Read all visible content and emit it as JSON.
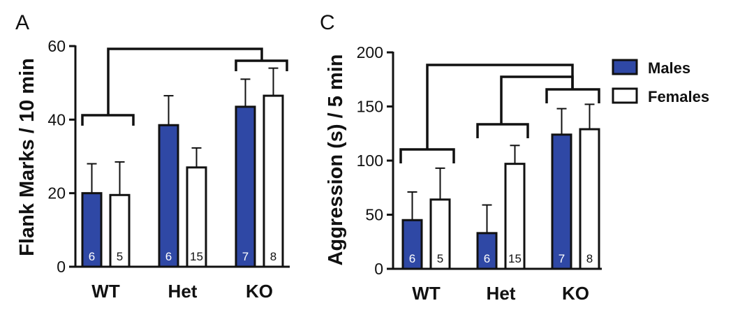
{
  "colors": {
    "male": "#2f48a5",
    "female": "#ffffff",
    "ink": "#111111"
  },
  "legend": {
    "males_label": "Males",
    "females_label": "Females"
  },
  "chart_data": [
    {
      "type": "bar",
      "panel": "A",
      "title": "",
      "xlabel": "",
      "ylabel": "Flank Marks / 10 min",
      "ylim": [
        0,
        60
      ],
      "yticks": [
        0,
        20,
        40,
        60
      ],
      "categories": [
        "WT",
        "Het",
        "KO"
      ],
      "series": [
        {
          "name": "Males",
          "values": [
            20,
            38.5,
            43.5
          ],
          "errors": [
            8,
            8,
            7.5
          ],
          "n": [
            "6",
            "6",
            "7"
          ]
        },
        {
          "name": "Females",
          "values": [
            19.5,
            27,
            46.5
          ],
          "errors": [
            9,
            5.3,
            7.5
          ],
          "n": [
            "5",
            "15",
            "8"
          ]
        }
      ],
      "significance_brackets": "WT vs KO"
    },
    {
      "type": "bar",
      "panel": "C",
      "title": "",
      "xlabel": "",
      "ylabel": "Aggression (s)  / 5 min",
      "ylim": [
        0,
        200
      ],
      "yticks": [
        0,
        50,
        100,
        150,
        200
      ],
      "categories": [
        "WT",
        "Het",
        "KO"
      ],
      "series": [
        {
          "name": "Males",
          "values": [
            45,
            33,
            124
          ],
          "errors": [
            26,
            26,
            24
          ],
          "n": [
            "6",
            "6",
            "7"
          ]
        },
        {
          "name": "Females",
          "values": [
            64,
            97,
            129
          ],
          "errors": [
            29,
            17,
            23
          ],
          "n": [
            "5",
            "15",
            "8"
          ]
        }
      ],
      "significance_brackets": "WT vs KO, Het vs KO"
    }
  ]
}
